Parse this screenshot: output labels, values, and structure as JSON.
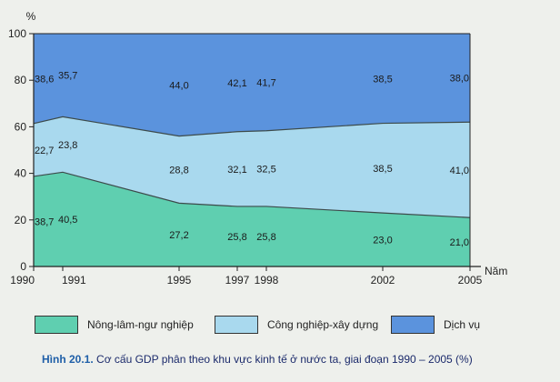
{
  "chart_data": {
    "type": "area",
    "y_unit_label": "%",
    "x_axis_label": "Năm",
    "x": [
      1990,
      1991,
      1995,
      1997,
      1998,
      2002,
      2005
    ],
    "ylim": [
      0,
      100
    ],
    "yticks": [
      0,
      20,
      40,
      60,
      80,
      100
    ],
    "stacked": true,
    "series": [
      {
        "name": "Nông-lâm-ngư nghiệp",
        "color": "#5fcfb0",
        "values": [
          38.7,
          40.5,
          27.2,
          25.8,
          25.8,
          23.0,
          21.0
        ],
        "labels": [
          "38,7",
          "40,5",
          "27,2",
          "25,8",
          "25,8",
          "23,0",
          "21,0"
        ]
      },
      {
        "name": "Công nghiệp-xây dựng",
        "color": "#a9d9ee",
        "values": [
          22.7,
          23.8,
          28.8,
          32.1,
          32.5,
          38.5,
          41.0
        ],
        "labels": [
          "22,7",
          "23,8",
          "28,8",
          "32,1",
          "32,5",
          "38,5",
          "41,0"
        ]
      },
      {
        "name": "Dịch vụ",
        "color": "#5b93dd",
        "values": [
          38.6,
          35.7,
          44.0,
          42.1,
          41.7,
          38.5,
          38.0
        ],
        "labels": [
          "38,6",
          "35,7",
          "44,0",
          "42,1",
          "41,7",
          "38,5",
          "38,0"
        ]
      }
    ]
  },
  "caption": {
    "figure_label": "Hình 20.1.",
    "text": " Cơ cấu GDP phân theo khu vực kinh tế ở nước ta, giai đoạn 1990 – 2005 (%)"
  }
}
